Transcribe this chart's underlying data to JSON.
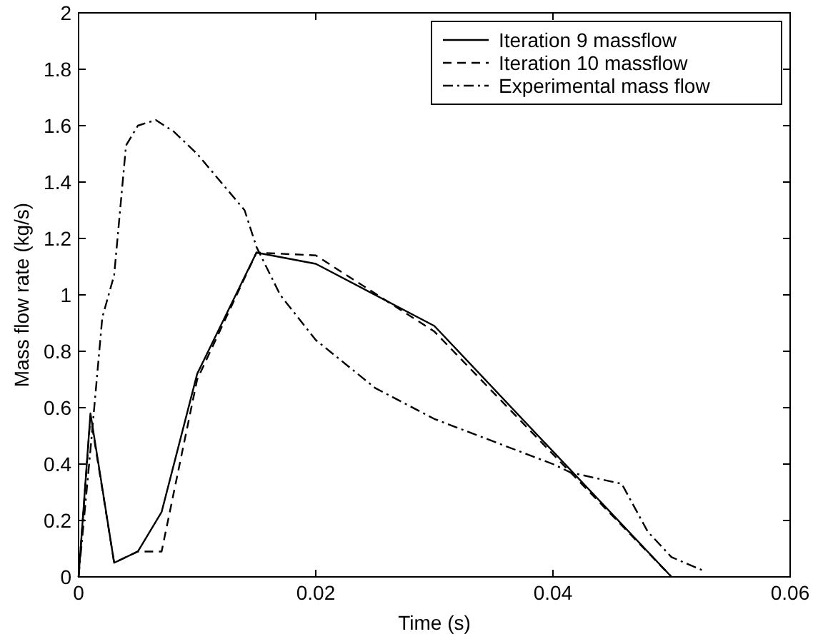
{
  "chart_data": {
    "type": "line",
    "xlabel": "Time (s)",
    "ylabel": "Mass flow rate (kg/s)",
    "xlim": [
      0,
      0.06
    ],
    "xticks": [
      0,
      0.02,
      0.04,
      0.06
    ],
    "ylim": [
      0,
      2
    ],
    "yticks": [
      0,
      0.2,
      0.4,
      0.6,
      0.8,
      1,
      1.2,
      1.4,
      1.6,
      1.8,
      2
    ],
    "grid": false,
    "legend": "top right",
    "marker": "none",
    "series": [
      {
        "name": "Iteration 9 massflow",
        "color": "#000000",
        "line_style": "solid",
        "x": [
          0,
          0.001,
          0.003,
          0.005,
          0.007,
          0.01,
          0.015,
          0.02,
          0.03,
          0.05
        ],
        "values": [
          0,
          0.58,
          0.05,
          0.09,
          0.23,
          0.72,
          1.15,
          1.11,
          0.89,
          0
        ]
      },
      {
        "name": "Iteration 10 massflow",
        "color": "#000000",
        "line_style": "dashed",
        "x": [
          0,
          0.001,
          0.003,
          0.005,
          0.007,
          0.01,
          0.015,
          0.02,
          0.03,
          0.05
        ],
        "values": [
          0,
          0.57,
          0.05,
          0.09,
          0.09,
          0.7,
          1.15,
          1.14,
          0.87,
          0
        ]
      },
      {
        "name": "Experimental mass flow",
        "color": "#000000",
        "line_style": "dashdot",
        "x": [
          0,
          0.001,
          0.002,
          0.003,
          0.004,
          0.005,
          0.0065,
          0.008,
          0.01,
          0.012,
          0.014,
          0.015,
          0.017,
          0.02,
          0.025,
          0.03,
          0.035,
          0.04,
          0.0415,
          0.0458,
          0.048,
          0.05,
          0.0528
        ],
        "values": [
          0,
          0.45,
          0.92,
          1.07,
          1.53,
          1.6,
          1.62,
          1.58,
          1.5,
          1.4,
          1.3,
          1.17,
          1.0,
          0.84,
          0.67,
          0.56,
          0.48,
          0.4,
          0.37,
          0.33,
          0.16,
          0.07,
          0.02
        ]
      }
    ]
  }
}
